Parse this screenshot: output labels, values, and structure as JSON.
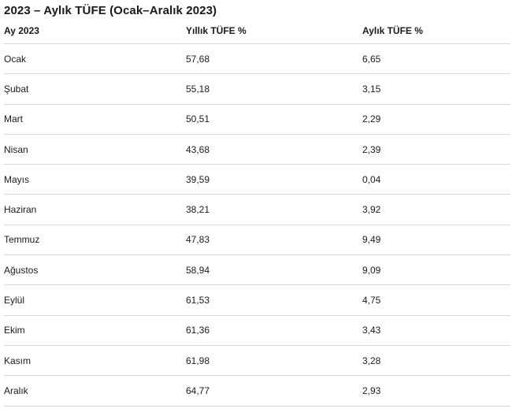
{
  "page": {
    "title": "2023 – Aylık TÜFE (Ocak–Aralık 2023)"
  },
  "table": {
    "columns": [
      "Ay 2023",
      "Yıllık TÜFE %",
      "Aylık TÜFE %"
    ],
    "rows": [
      {
        "month": "Ocak",
        "yearly": "57,68",
        "monthly": "6,65"
      },
      {
        "month": "Şubat",
        "yearly": "55,18",
        "monthly": "3,15"
      },
      {
        "month": "Mart",
        "yearly": "50,51",
        "monthly": "2,29"
      },
      {
        "month": "Nisan",
        "yearly": "43,68",
        "monthly": "2,39"
      },
      {
        "month": "Mayıs",
        "yearly": "39,59",
        "monthly": "0,04"
      },
      {
        "month": "Haziran",
        "yearly": "38,21",
        "monthly": "3,92"
      },
      {
        "month": "Temmuz",
        "yearly": "47,83",
        "monthly": "9,49"
      },
      {
        "month": "Ağustos",
        "yearly": "58,94",
        "monthly": "9,09"
      },
      {
        "month": "Eylül",
        "yearly": "61,53",
        "monthly": "4,75"
      },
      {
        "month": "Ekim",
        "yearly": "61,36",
        "monthly": "3,43"
      },
      {
        "month": "Kasım",
        "yearly": "61,98",
        "monthly": "3,28"
      },
      {
        "month": "Aralık",
        "yearly": "64,77",
        "monthly": "2,93"
      }
    ]
  },
  "colors": {
    "background": "#ffffff",
    "text": "#1b1b1b",
    "divider": "#d9d9d9"
  },
  "chart_data": {
    "type": "table",
    "title": "2023 – Aylık TÜFE (Ocak–Aralık 2023)",
    "columns": [
      "Ay 2023",
      "Yıllık TÜFE %",
      "Aylık TÜFE %"
    ],
    "categories": [
      "Ocak",
      "Şubat",
      "Mart",
      "Nisan",
      "Mayıs",
      "Haziran",
      "Temmuz",
      "Ağustos",
      "Eylül",
      "Ekim",
      "Kasım",
      "Aralık"
    ],
    "series": [
      {
        "name": "Yıllık TÜFE %",
        "values": [
          57.68,
          55.18,
          50.51,
          43.68,
          39.59,
          38.21,
          47.83,
          58.94,
          61.53,
          61.36,
          61.98,
          64.77
        ]
      },
      {
        "name": "Aylık TÜFE %",
        "values": [
          6.65,
          3.15,
          2.29,
          2.39,
          0.04,
          3.92,
          9.49,
          9.09,
          4.75,
          3.43,
          3.28,
          2.93
        ]
      }
    ]
  }
}
